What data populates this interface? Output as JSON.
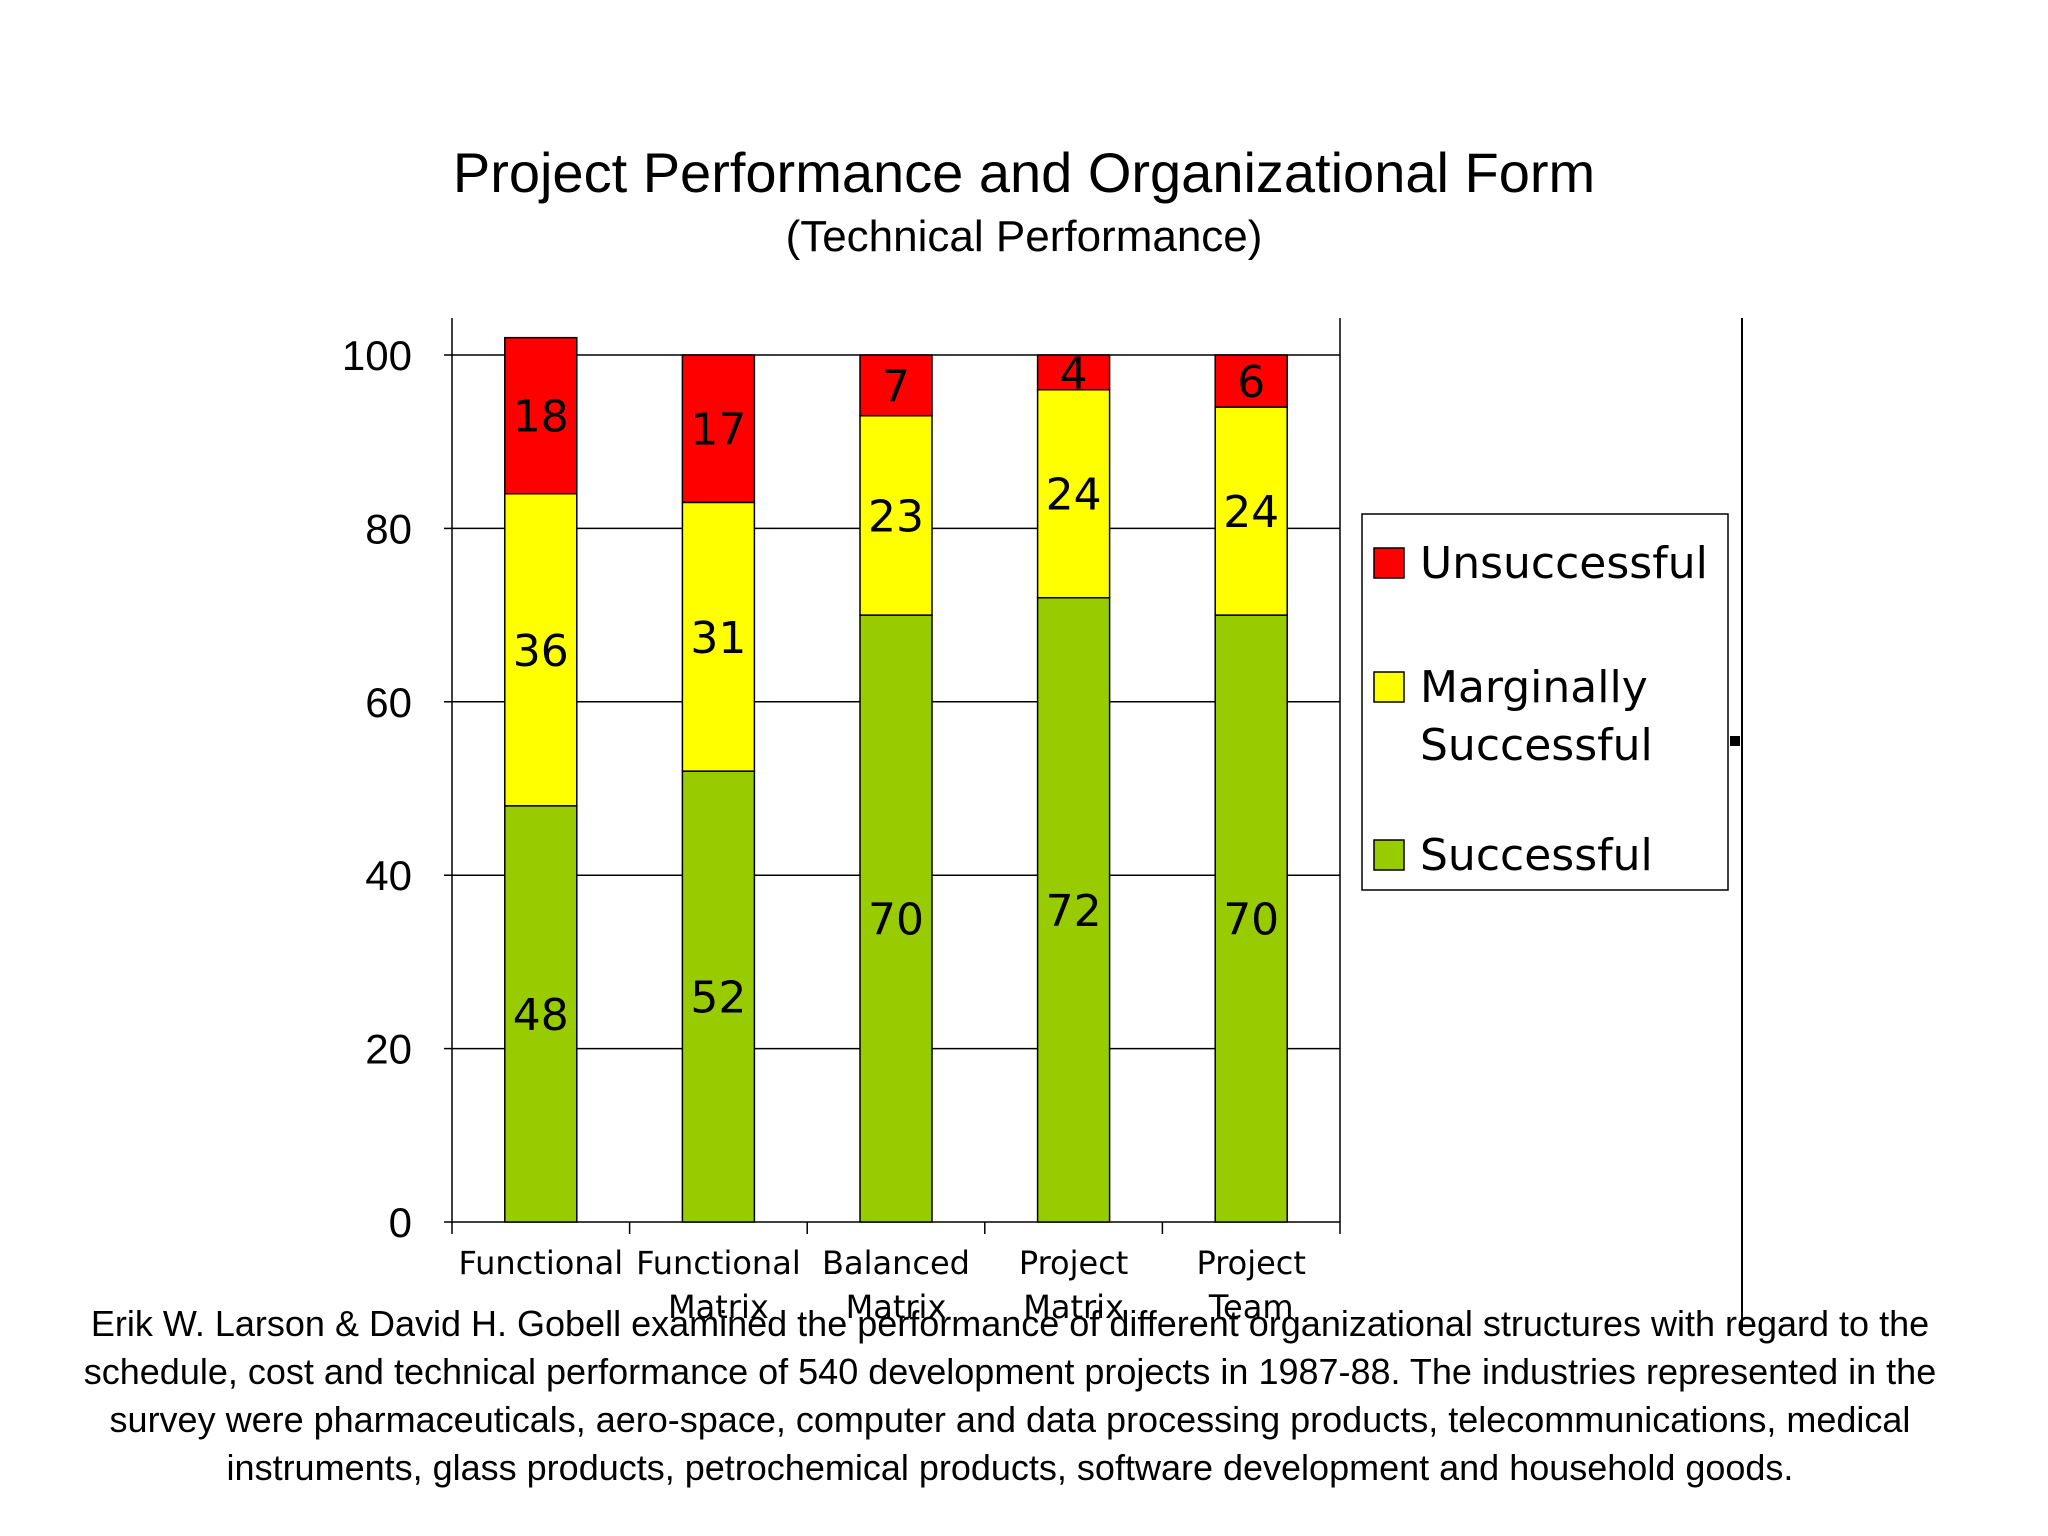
{
  "chart_data": {
    "type": "bar",
    "stacked": true,
    "title": "Project Performance and Organizational Form",
    "subtitle": "(Technical Performance)",
    "categories": [
      [
        "Functional"
      ],
      [
        "Functional",
        "Matrix"
      ],
      [
        "Balanced",
        "Matrix"
      ],
      [
        "Project",
        "Matrix"
      ],
      [
        "Project",
        "Team"
      ]
    ],
    "series": [
      {
        "name": "Successful",
        "color": "#99cc00",
        "values": [
          48,
          52,
          70,
          72,
          70
        ]
      },
      {
        "name": "Marginally Successful",
        "color": "#ffff00",
        "values": [
          36,
          31,
          23,
          24,
          24
        ]
      },
      {
        "name": "Unsuccessful",
        "color": "#ff0000",
        "values": [
          18,
          17,
          7,
          4,
          6
        ]
      }
    ],
    "legend_entries": [
      {
        "series": 2,
        "lines": [
          "Unsuccessful"
        ]
      },
      {
        "series": 1,
        "lines": [
          "Marginally",
          "Successful"
        ]
      },
      {
        "series": 0,
        "lines": [
          "Successful"
        ]
      }
    ],
    "yticks": [
      0,
      20,
      40,
      60,
      80,
      100
    ],
    "ylim": [
      0,
      100
    ],
    "grid": true,
    "legend_position": "right"
  },
  "caption": "Erik W. Larson & David H. Gobell  examined the performance of different organizational structures with regard to the schedule, cost and technical performance of 540 development projects in 1987-88. The industries represented in the survey were pharmaceuticals, aero-space, computer and data processing products, telecommunications, medical instruments, glass products, petrochemical products, software development and household goods."
}
